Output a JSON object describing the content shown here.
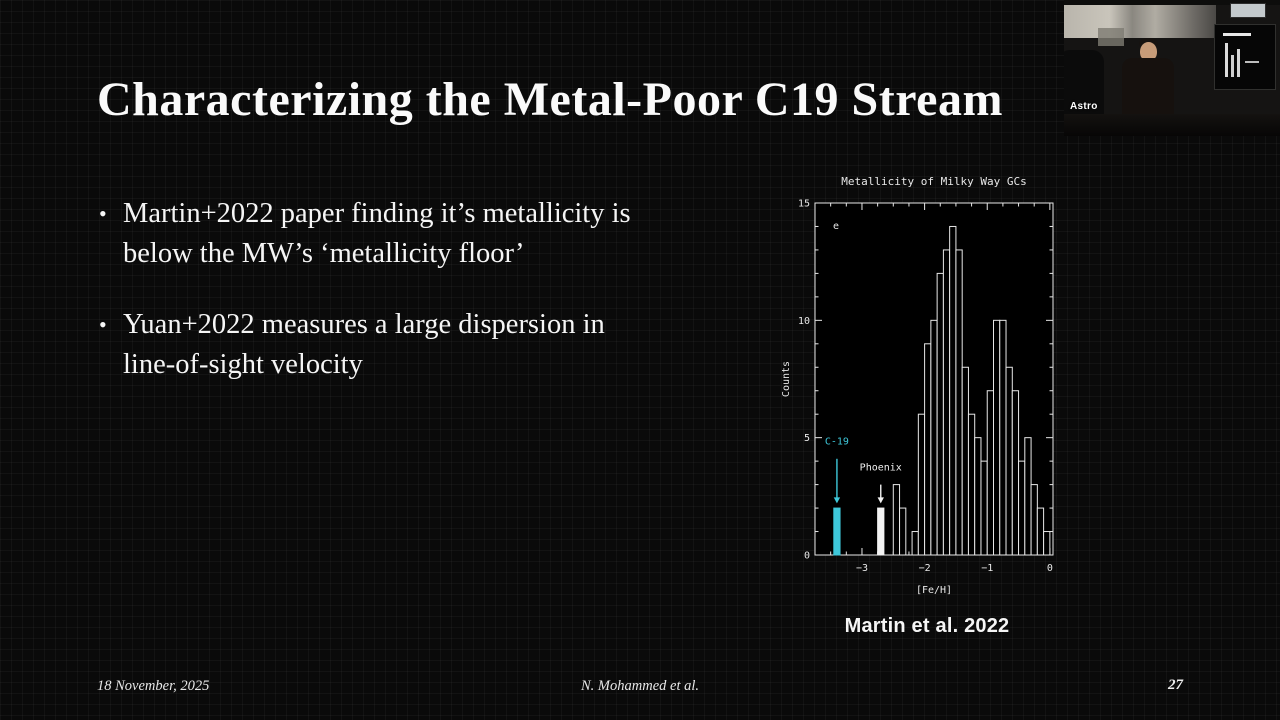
{
  "slide": {
    "title": "Characterizing the Metal-Poor C19 Stream",
    "bullets": [
      "Martin+2022 paper finding it’s metallicity is below the MW’s ‘metallicity floor’",
      "Yuan+2022 measures a large dispersion in line-of-sight velocity"
    ],
    "chart_caption": "Martin et al. 2022",
    "footer": {
      "date": "18 November, 2025",
      "credit": "N. Mohammed et al.",
      "page_number": "27"
    }
  },
  "video_overlay": {
    "watermark": "Astro"
  },
  "chart_data": {
    "type": "bar",
    "title": "Metallicity of Milky Way GCs",
    "xlabel": "[Fe/H]",
    "ylabel": "Counts",
    "panel_label": "e",
    "xlim": [
      -3.75,
      0.05
    ],
    "ylim": [
      0,
      15
    ],
    "x_ticks": [
      -3,
      -2,
      -1,
      0
    ],
    "y_ticks": [
      0,
      5,
      10,
      15
    ],
    "bin_width": 0.1,
    "grid": false,
    "colors": {
      "axis": "#e8e8e8",
      "bar_outline": "#e8e8e8",
      "background": "#000000",
      "c19": "#3ec8da",
      "phoenix": "#f2f2f2"
    },
    "bins": [
      {
        "x": -3.4,
        "count": 2,
        "filled": true,
        "color": "#3ec8da"
      },
      {
        "x": -2.7,
        "count": 2,
        "filled": true,
        "color": "#f2f2f2"
      },
      {
        "x": -2.45,
        "count": 3
      },
      {
        "x": -2.35,
        "count": 2
      },
      {
        "x": -2.15,
        "count": 1
      },
      {
        "x": -2.05,
        "count": 6
      },
      {
        "x": -1.95,
        "count": 9
      },
      {
        "x": -1.85,
        "count": 10
      },
      {
        "x": -1.75,
        "count": 12
      },
      {
        "x": -1.65,
        "count": 13
      },
      {
        "x": -1.55,
        "count": 14
      },
      {
        "x": -1.45,
        "count": 13
      },
      {
        "x": -1.35,
        "count": 8
      },
      {
        "x": -1.25,
        "count": 6
      },
      {
        "x": -1.15,
        "count": 5
      },
      {
        "x": -1.05,
        "count": 4
      },
      {
        "x": -0.95,
        "count": 7
      },
      {
        "x": -0.85,
        "count": 10
      },
      {
        "x": -0.75,
        "count": 10
      },
      {
        "x": -0.65,
        "count": 8
      },
      {
        "x": -0.55,
        "count": 7
      },
      {
        "x": -0.45,
        "count": 4
      },
      {
        "x": -0.35,
        "count": 5
      },
      {
        "x": -0.25,
        "count": 3
      },
      {
        "x": -0.15,
        "count": 2
      },
      {
        "x": -0.05,
        "count": 1
      }
    ],
    "annotations": [
      {
        "label": "C-19",
        "x": -3.4,
        "color": "#3ec8da",
        "label_y": 4.7,
        "arrow_from": 4.1,
        "arrow_to": 2.2
      },
      {
        "label": "Phoenix",
        "x": -2.7,
        "color": "#f2f2f2",
        "label_y": 3.6,
        "arrow_from": 3.0,
        "arrow_to": 2.2
      }
    ],
    "legend": null
  }
}
